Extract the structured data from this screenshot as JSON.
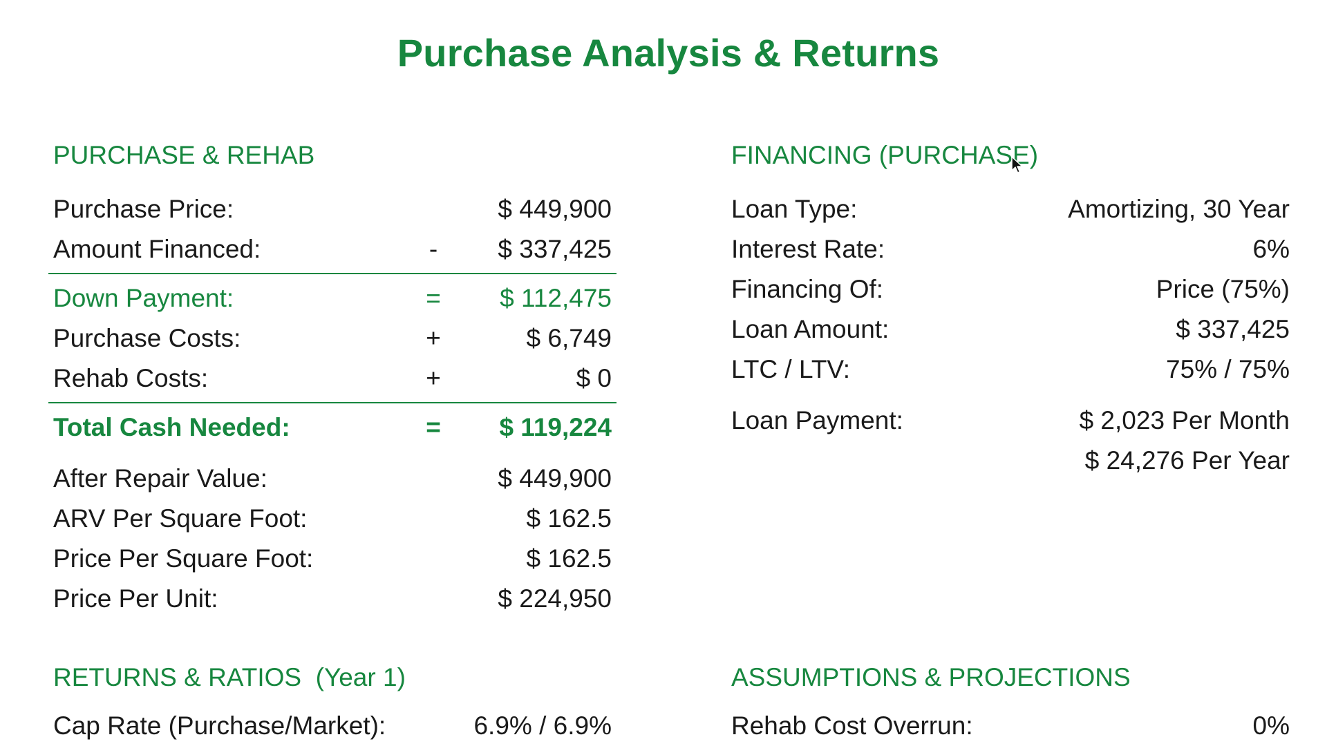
{
  "page_title": "Purchase Analysis & Returns",
  "purchase_rehab": {
    "heading": "PURCHASE & REHAB",
    "rows_top": [
      {
        "label": "Purchase Price:",
        "op": "",
        "value": "$ 449,900"
      },
      {
        "label": "Amount Financed:",
        "op": "-",
        "value": "$ 337,425"
      }
    ],
    "rows_mid": [
      {
        "label": "Down Payment:",
        "op": "=",
        "value": "$ 112,475"
      },
      {
        "label": "Purchase Costs:",
        "op": "+",
        "value": "$ 6,749"
      },
      {
        "label": "Rehab Costs:",
        "op": "+",
        "value": "$ 0"
      }
    ],
    "total": {
      "label": "Total Cash Needed:",
      "op": "=",
      "value": "$ 119,224"
    },
    "rows_bottom": [
      {
        "label": "After Repair Value:",
        "value": "$ 449,900"
      },
      {
        "label": "ARV Per Square Foot:",
        "value": "$ 162.5"
      },
      {
        "label": "Price Per Square Foot:",
        "value": "$ 162.5"
      },
      {
        "label": "Price Per Unit:",
        "value": "$ 224,950"
      }
    ]
  },
  "financing": {
    "heading": "FINANCING (PURCHASE)",
    "rows": [
      {
        "label": "Loan Type:",
        "value": "Amortizing, 30 Year"
      },
      {
        "label": "Interest Rate:",
        "value": "6%"
      },
      {
        "label": "Financing Of:",
        "value": "Price (75%)"
      },
      {
        "label": "Loan Amount:",
        "value": "$ 337,425"
      },
      {
        "label": "LTC / LTV:",
        "value": "75% / 75%"
      }
    ],
    "loan_payment": {
      "label": "Loan Payment:",
      "per_month": "$ 2,023 Per Month",
      "per_year": "$ 24,276 Per Year"
    }
  },
  "returns_ratios": {
    "heading": "RETURNS & RATIOS  (Year 1)",
    "rows": [
      {
        "label": "Cap Rate (Purchase/Market):",
        "value": "6.9% / 6.9%"
      }
    ]
  },
  "assumptions": {
    "heading": "ASSUMPTIONS & PROJECTIONS",
    "rows": [
      {
        "label": "Rehab Cost Overrun:",
        "value": "0%"
      }
    ]
  },
  "colors": {
    "accent": "#17873f",
    "text": "#1a1a1a",
    "background": "#ffffff"
  }
}
